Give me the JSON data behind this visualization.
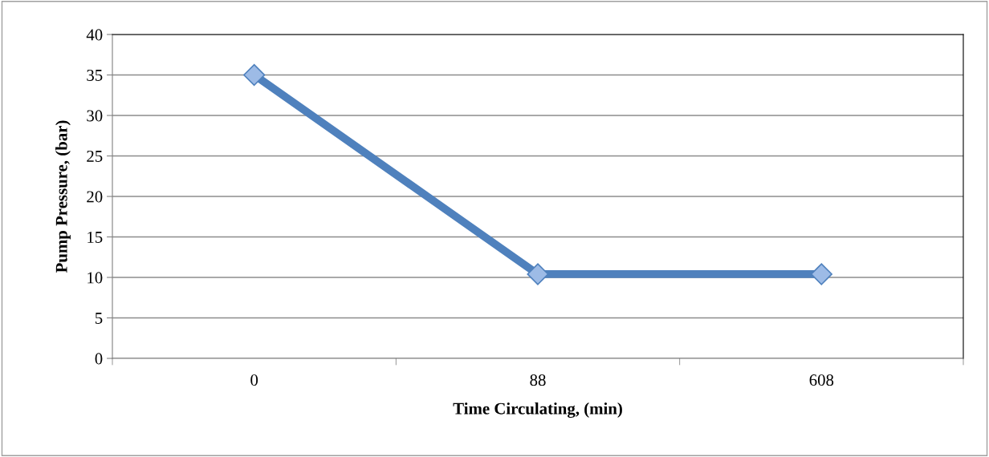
{
  "chart_data": {
    "type": "line",
    "xlabel": "Time Circulating, (min)",
    "ylabel": "Pump Pressure, (bar)",
    "categories": [
      "0",
      "88",
      "608"
    ],
    "series": [
      {
        "color": "#4f81bd",
        "values": [
          35,
          10.4,
          10.4
        ]
      }
    ],
    "ylim": [
      0,
      40
    ],
    "yticks": [
      0,
      5,
      10,
      15,
      20,
      25,
      30,
      35,
      40
    ],
    "grid": "y",
    "marker": "diamond",
    "line_style": "solid"
  }
}
